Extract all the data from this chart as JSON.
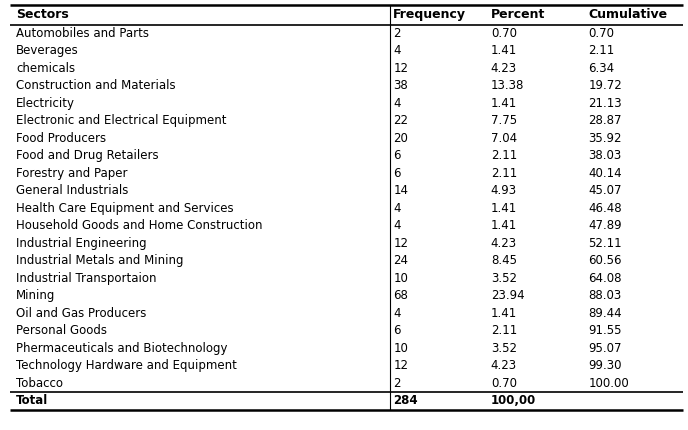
{
  "columns": [
    "Sectors",
    "Frequency",
    "Percent",
    "Cumulative"
  ],
  "rows": [
    [
      "Automobiles and Parts",
      "2",
      "0.70",
      "0.70"
    ],
    [
      "Beverages",
      "4",
      "1.41",
      "2.11"
    ],
    [
      "chemicals",
      "12",
      "4.23",
      "6.34"
    ],
    [
      "Construction and Materials",
      "38",
      "13.38",
      "19.72"
    ],
    [
      "Electricity",
      "4",
      "1.41",
      "21.13"
    ],
    [
      "Electronic and Electrical Equipment",
      "22",
      "7.75",
      "28.87"
    ],
    [
      "Food Producers",
      "20",
      "7.04",
      "35.92"
    ],
    [
      "Food and Drug Retailers",
      "6",
      "2.11",
      "38.03"
    ],
    [
      "Forestry and Paper",
      "6",
      "2.11",
      "40.14"
    ],
    [
      "General Industrials",
      "14",
      "4.93",
      "45.07"
    ],
    [
      "Health Care Equipment and Services",
      "4",
      "1.41",
      "46.48"
    ],
    [
      "Household Goods and Home Construction",
      "4",
      "1.41",
      "47.89"
    ],
    [
      "Industrial Engineering",
      "12",
      "4.23",
      "52.11"
    ],
    [
      "Industrial Metals and Mining",
      "24",
      "8.45",
      "60.56"
    ],
    [
      "Industrial Transportaion",
      "10",
      "3.52",
      "64.08"
    ],
    [
      "Mining",
      "68",
      "23.94",
      "88.03"
    ],
    [
      "Oil and Gas Producers",
      "4",
      "1.41",
      "89.44"
    ],
    [
      "Personal Goods",
      "6",
      "2.11",
      "91.55"
    ],
    [
      "Phermaceuticals and Biotechnology",
      "10",
      "3.52",
      "95.07"
    ],
    [
      "Technology Hardware and Equipment",
      "12",
      "4.23",
      "99.30"
    ],
    [
      "Tobacco",
      "2",
      "0.70",
      "100.00"
    ]
  ],
  "total_row": [
    "Total",
    "284",
    "100,00",
    ""
  ],
  "bg_color": "#ffffff",
  "line_color": "#000000",
  "font_size": 8.5,
  "header_font_size": 9.0,
  "font_family": "DejaVu Sans"
}
